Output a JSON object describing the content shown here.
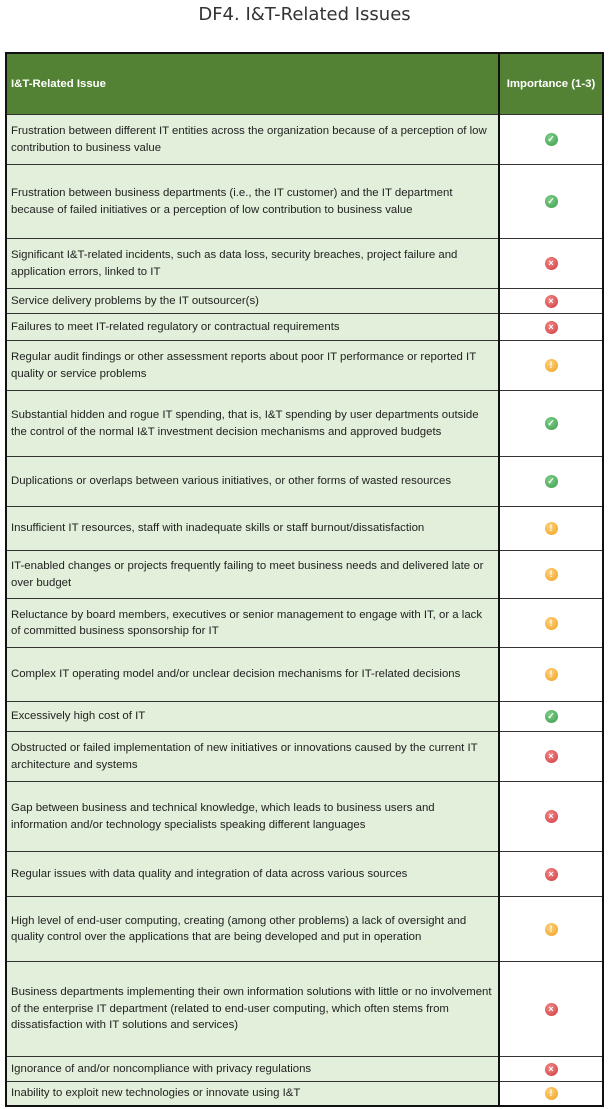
{
  "title": "DF4. I&T-Related Issues",
  "table": {
    "headers": {
      "issue": "I&T-Related Issue",
      "importance": "Importance (1-3)"
    },
    "icon_legend": {
      "check": "green check",
      "x": "red cross",
      "warn": "orange exclamation"
    },
    "colors": {
      "header": "#548235",
      "row": "#e2efda",
      "check": "#3a9a4a",
      "x": "#d0383c",
      "warn": "#f0a020"
    },
    "rows": [
      {
        "issue": "Frustration between different IT entities across the organization because of a perception of low contribution to business value",
        "status": "check"
      },
      {
        "issue": "Frustration between business departments (i.e., the IT customer) and the IT department because of failed initiatives or a perception of low contribution to business value",
        "status": "check"
      },
      {
        "issue": "Significant I&T-related incidents, such as data loss, security breaches, project failure and application errors, linked to IT",
        "status": "x"
      },
      {
        "issue": "Service delivery problems by the IT outsourcer(s)",
        "status": "x"
      },
      {
        "issue": "Failures to meet IT-related regulatory or contractual requirements",
        "status": "x"
      },
      {
        "issue": "Regular audit findings or other assessment reports about poor IT performance or reported IT quality or service problems",
        "status": "warn"
      },
      {
        "issue": "Substantial hidden and rogue IT spending, that is, I&T spending by user departments outside the control of the normal I&T investment decision mechanisms and approved budgets",
        "status": "check"
      },
      {
        "issue": "Duplications or overlaps between various initiatives, or other forms of wasted resources",
        "status": "check"
      },
      {
        "issue": "Insufficient IT resources, staff with inadequate skills or staff burnout/dissatisfaction",
        "status": "warn"
      },
      {
        "issue": "IT-enabled changes or projects frequently failing to meet business needs and delivered late or over budget",
        "status": "warn"
      },
      {
        "issue": "Reluctance by board members, executives or senior management to engage with IT, or a lack of committed business sponsorship for IT",
        "status": "warn"
      },
      {
        "issue": "Complex IT operating model and/or unclear decision mechanisms for IT-related decisions",
        "status": "warn"
      },
      {
        "issue": "Excessively high cost of IT",
        "status": "check"
      },
      {
        "issue": "Obstructed or failed implementation of new initiatives or innovations caused by the current IT architecture and systems",
        "status": "x"
      },
      {
        "issue": "Gap between business and technical knowledge, which leads to business users and information and/or technology specialists speaking different languages",
        "status": "x"
      },
      {
        "issue": "Regular issues with data quality and integration of data across various sources",
        "status": "x"
      },
      {
        "issue": "High level of end-user computing, creating (among other problems) a lack of oversight and quality control over the applications that are being developed and put in operation",
        "status": "warn"
      },
      {
        "issue": "Business departments implementing their own information solutions with little or no involvement of the enterprise IT department (related to end-user computing, which often stems from dissatisfaction with IT solutions and services)",
        "status": "x"
      },
      {
        "issue": "Ignorance of and/or noncompliance with privacy regulations",
        "status": "x"
      },
      {
        "issue": "Inability to exploit new technologies or innovate using I&T",
        "status": "warn"
      }
    ]
  }
}
